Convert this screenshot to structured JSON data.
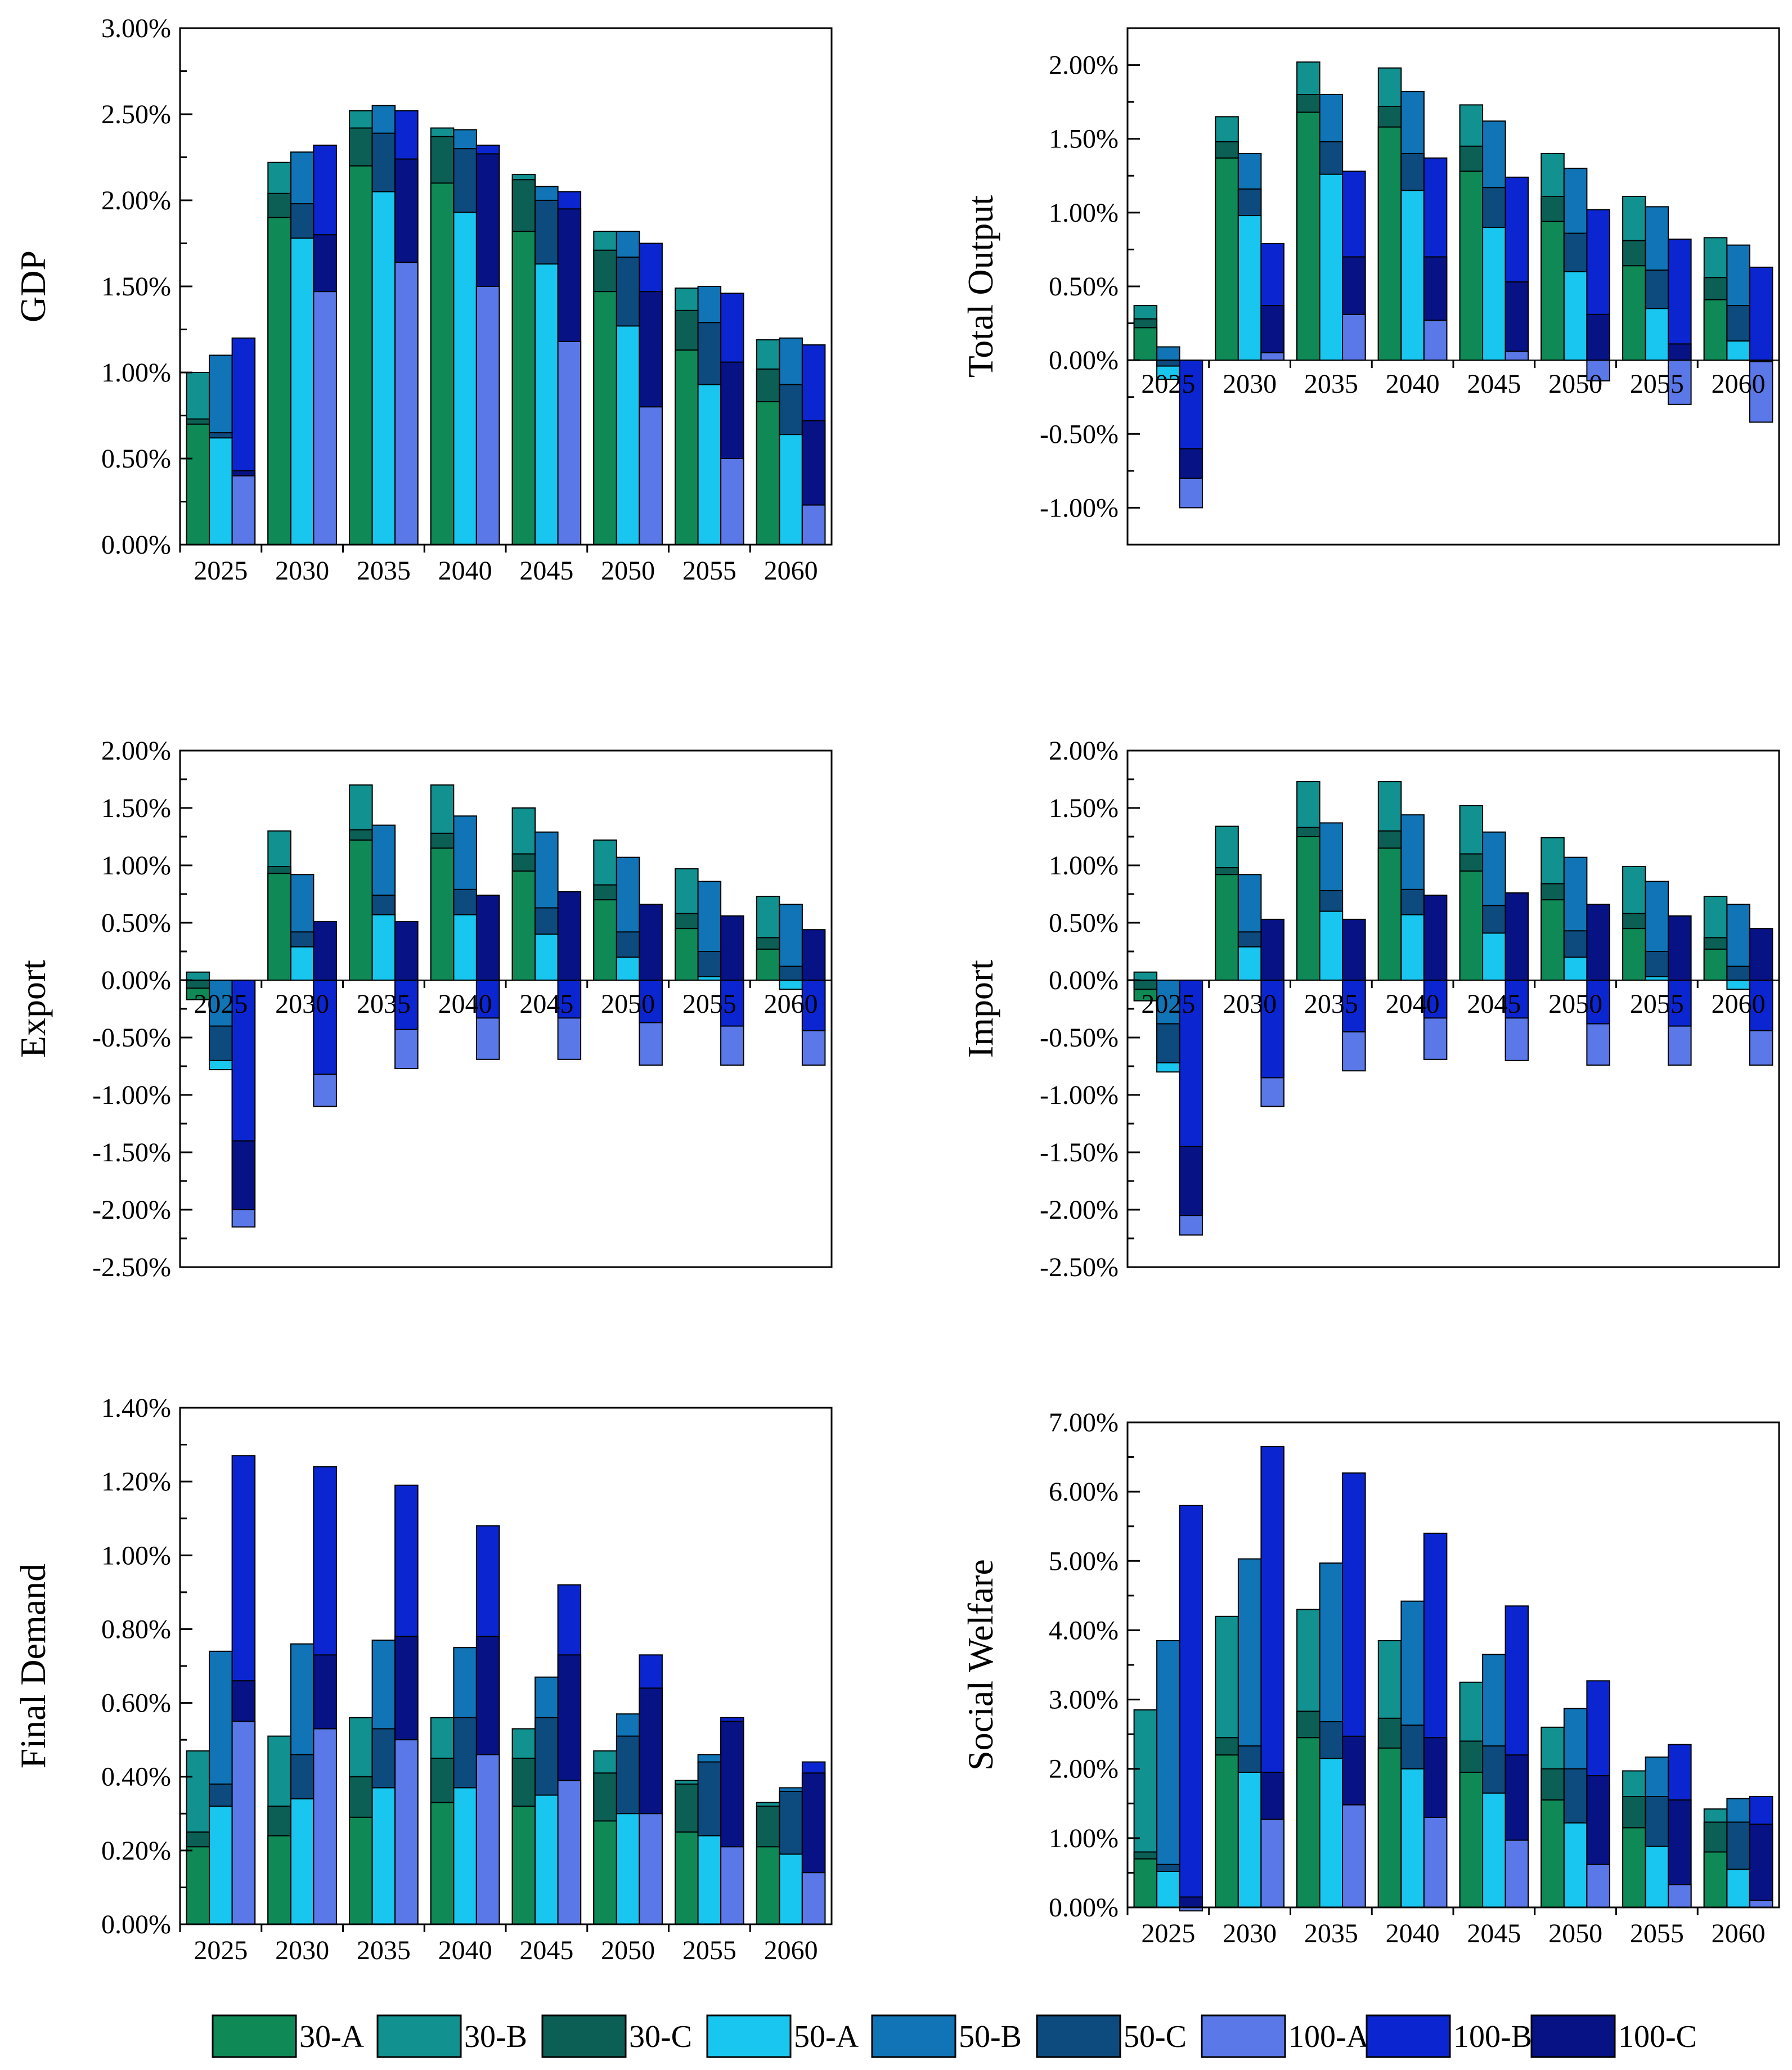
{
  "colors": {
    "30-A": "#0f8a57",
    "30-B": "#11918f",
    "30-C": "#0c5f54",
    "50-A": "#19c6ef",
    "50-B": "#1074b6",
    "50-C": "#0d4a7d",
    "100-A": "#5a78e8",
    "100-B": "#0b26d0",
    "100-C": "#071285"
  },
  "legend": {
    "items": [
      "30-A",
      "30-B",
      "30-C",
      "50-A",
      "50-B",
      "50-C",
      "100-A",
      "100-B",
      "100-C"
    ]
  },
  "chart_data": [
    {
      "type": "bar",
      "ylabel": "GDP",
      "ylim": [
        0,
        3.0
      ],
      "yticks": [
        0,
        0.5,
        1.0,
        1.5,
        2.0,
        2.5,
        3.0
      ],
      "ytick_labels": [
        "0.00%",
        "0.50%",
        "1.00%",
        "1.50%",
        "2.00%",
        "2.50%",
        "3.00%"
      ],
      "categories": [
        "2025",
        "2030",
        "2035",
        "2040",
        "2045",
        "2050",
        "2055",
        "2060"
      ],
      "series": [
        {
          "name": "30-A",
          "values": [
            0.7,
            1.9,
            2.2,
            2.1,
            1.82,
            1.47,
            1.13,
            0.83
          ]
        },
        {
          "name": "30-B",
          "values": [
            1.0,
            2.22,
            2.52,
            2.42,
            2.15,
            1.82,
            1.49,
            1.19
          ]
        },
        {
          "name": "30-C",
          "values": [
            0.73,
            2.04,
            2.42,
            2.37,
            2.12,
            1.71,
            1.36,
            1.02
          ]
        },
        {
          "name": "50-A",
          "values": [
            0.62,
            1.78,
            2.05,
            1.93,
            1.63,
            1.27,
            0.93,
            0.64
          ]
        },
        {
          "name": "50-B",
          "values": [
            1.1,
            2.28,
            2.55,
            2.41,
            2.08,
            1.82,
            1.5,
            1.2
          ]
        },
        {
          "name": "50-C",
          "values": [
            0.65,
            1.98,
            2.39,
            2.3,
            2.0,
            1.67,
            1.29,
            0.93
          ]
        },
        {
          "name": "100-A",
          "values": [
            0.4,
            1.47,
            1.64,
            1.5,
            1.18,
            0.8,
            0.5,
            0.23
          ]
        },
        {
          "name": "100-B",
          "values": [
            1.2,
            2.32,
            2.52,
            2.32,
            2.05,
            1.75,
            1.46,
            1.16
          ]
        },
        {
          "name": "100-C",
          "values": [
            0.43,
            1.8,
            2.24,
            2.27,
            1.95,
            1.47,
            1.06,
            0.72
          ]
        }
      ]
    },
    {
      "type": "bar",
      "ylabel": "Total Output",
      "ylim": [
        -1.25,
        2.25
      ],
      "yticks": [
        -1.0,
        -0.5,
        0,
        0.5,
        1.0,
        1.5,
        2.0
      ],
      "ytick_labels": [
        "-1.00%",
        "-0.50%",
        "0.00%",
        "0.50%",
        "1.00%",
        "1.50%",
        "2.00%"
      ],
      "categories": [
        "2025",
        "2030",
        "2035",
        "2040",
        "2045",
        "2050",
        "2055",
        "2060"
      ],
      "series": [
        {
          "name": "30-A",
          "values": [
            0.22,
            1.37,
            1.68,
            1.58,
            1.28,
            0.94,
            0.64,
            0.41
          ]
        },
        {
          "name": "30-B",
          "values": [
            0.37,
            1.65,
            2.02,
            1.98,
            1.73,
            1.4,
            1.11,
            0.83
          ]
        },
        {
          "name": "30-C",
          "values": [
            0.28,
            1.48,
            1.8,
            1.72,
            1.45,
            1.11,
            0.81,
            0.56
          ]
        },
        {
          "name": "50-A",
          "values": [
            -0.13,
            0.98,
            1.26,
            1.15,
            0.9,
            0.6,
            0.35,
            0.13
          ]
        },
        {
          "name": "50-B",
          "values": [
            0.09,
            1.4,
            1.8,
            1.82,
            1.62,
            1.3,
            1.04,
            0.78
          ]
        },
        {
          "name": "50-C",
          "values": [
            -0.04,
            1.16,
            1.48,
            1.4,
            1.17,
            0.86,
            0.61,
            0.37
          ]
        },
        {
          "name": "100-A",
          "values": [
            -1.0,
            0.05,
            0.31,
            0.27,
            0.06,
            -0.14,
            -0.3,
            -0.42
          ]
        },
        {
          "name": "100-B",
          "values": [
            -0.6,
            0.79,
            1.28,
            1.37,
            1.24,
            1.02,
            0.82,
            0.63
          ]
        },
        {
          "name": "100-C",
          "values": [
            -0.8,
            0.37,
            0.7,
            0.7,
            0.53,
            0.31,
            0.11,
            -0.01
          ]
        }
      ]
    },
    {
      "type": "bar",
      "ylabel": "Export",
      "ylim": [
        -2.5,
        2.0
      ],
      "yticks": [
        -2.5,
        -2.0,
        -1.5,
        -1.0,
        -0.5,
        0,
        0.5,
        1.0,
        1.5,
        2.0
      ],
      "ytick_labels": [
        "-2.50%",
        "-2.00%",
        "-1.50%",
        "-1.00%",
        "-0.50%",
        "0.00%",
        "0.50%",
        "1.00%",
        "1.50%",
        "2.00%"
      ],
      "categories": [
        "2025",
        "2030",
        "2035",
        "2040",
        "2045",
        "2050",
        "2055",
        "2060"
      ],
      "series": [
        {
          "name": "30-A",
          "values": [
            -0.17,
            0.93,
            1.22,
            1.15,
            0.95,
            0.7,
            0.45,
            0.27
          ]
        },
        {
          "name": "30-B",
          "values": [
            0.07,
            1.3,
            1.7,
            1.7,
            1.5,
            1.22,
            0.97,
            0.73
          ]
        },
        {
          "name": "30-C",
          "values": [
            -0.07,
            0.99,
            1.31,
            1.28,
            1.1,
            0.83,
            0.58,
            0.37
          ]
        },
        {
          "name": "50-A",
          "values": [
            -0.78,
            0.29,
            0.57,
            0.57,
            0.4,
            0.2,
            0.03,
            -0.08
          ]
        },
        {
          "name": "50-B",
          "values": [
            -0.4,
            0.92,
            1.35,
            1.43,
            1.29,
            1.07,
            0.86,
            0.66
          ]
        },
        {
          "name": "50-C",
          "values": [
            -0.7,
            0.42,
            0.74,
            0.79,
            0.63,
            0.42,
            0.25,
            0.12
          ]
        },
        {
          "name": "100-A",
          "values": [
            -2.15,
            -1.1,
            -0.77,
            -0.69,
            -0.69,
            -0.74,
            -0.74,
            -0.74
          ]
        },
        {
          "name": "100-B",
          "values": [
            -1.4,
            -0.82,
            -0.43,
            -0.33,
            -0.33,
            -0.37,
            -0.4,
            -0.44
          ]
        },
        {
          "name": "100-C",
          "values": [
            -2.0,
            0.51,
            0.51,
            0.74,
            0.77,
            0.66,
            0.56,
            0.44
          ]
        }
      ]
    },
    {
      "type": "bar",
      "ylabel": "Import",
      "ylim": [
        -2.5,
        2.0
      ],
      "yticks": [
        -2.5,
        -2.0,
        -1.5,
        -1.0,
        -0.5,
        0,
        0.5,
        1.0,
        1.5,
        2.0
      ],
      "ytick_labels": [
        "-2.50%",
        "-2.00%",
        "-1.50%",
        "-1.00%",
        "-0.50%",
        "0.00%",
        "0.50%",
        "1.00%",
        "1.50%",
        "2.00%"
      ],
      "categories": [
        "2025",
        "2030",
        "2035",
        "2040",
        "2045",
        "2050",
        "2055",
        "2060"
      ],
      "series": [
        {
          "name": "30-A",
          "values": [
            -0.18,
            0.92,
            1.25,
            1.15,
            0.95,
            0.7,
            0.45,
            0.27
          ]
        },
        {
          "name": "30-B",
          "values": [
            0.07,
            1.34,
            1.73,
            1.73,
            1.52,
            1.24,
            0.99,
            0.73
          ]
        },
        {
          "name": "30-C",
          "values": [
            -0.08,
            0.98,
            1.33,
            1.3,
            1.1,
            0.84,
            0.58,
            0.37
          ]
        },
        {
          "name": "50-A",
          "values": [
            -0.8,
            0.29,
            0.6,
            0.57,
            0.41,
            0.2,
            0.03,
            -0.08
          ]
        },
        {
          "name": "50-B",
          "values": [
            -0.38,
            0.92,
            1.37,
            1.44,
            1.29,
            1.07,
            0.86,
            0.66
          ]
        },
        {
          "name": "50-C",
          "values": [
            -0.72,
            0.42,
            0.78,
            0.79,
            0.65,
            0.43,
            0.25,
            0.12
          ]
        },
        {
          "name": "100-A",
          "values": [
            -2.22,
            -1.1,
            -0.79,
            -0.69,
            -0.7,
            -0.74,
            -0.74,
            -0.74
          ]
        },
        {
          "name": "100-B",
          "values": [
            -1.45,
            -0.85,
            -0.45,
            -0.33,
            -0.33,
            -0.38,
            -0.4,
            -0.44
          ]
        },
        {
          "name": "100-C",
          "values": [
            -2.05,
            0.53,
            0.53,
            0.74,
            0.76,
            0.66,
            0.56,
            0.45
          ]
        }
      ]
    },
    {
      "type": "bar",
      "ylabel": "Final Demand",
      "ylim": [
        0,
        1.4
      ],
      "yticks": [
        0,
        0.2,
        0.4,
        0.6,
        0.8,
        1.0,
        1.2,
        1.4
      ],
      "ytick_labels": [
        "0.00%",
        "0.20%",
        "0.40%",
        "0.60%",
        "0.80%",
        "1.00%",
        "1.20%",
        "1.40%"
      ],
      "categories": [
        "2025",
        "2030",
        "2035",
        "2040",
        "2045",
        "2050",
        "2055",
        "2060"
      ],
      "series": [
        {
          "name": "30-A",
          "values": [
            0.21,
            0.24,
            0.29,
            0.33,
            0.32,
            0.28,
            0.25,
            0.21
          ]
        },
        {
          "name": "30-B",
          "values": [
            0.47,
            0.51,
            0.56,
            0.56,
            0.53,
            0.47,
            0.39,
            0.33
          ]
        },
        {
          "name": "30-C",
          "values": [
            0.25,
            0.32,
            0.4,
            0.45,
            0.45,
            0.41,
            0.38,
            0.32
          ]
        },
        {
          "name": "50-A",
          "values": [
            0.32,
            0.34,
            0.37,
            0.37,
            0.35,
            0.3,
            0.24,
            0.19
          ]
        },
        {
          "name": "50-B",
          "values": [
            0.74,
            0.76,
            0.77,
            0.75,
            0.67,
            0.57,
            0.46,
            0.37
          ]
        },
        {
          "name": "50-C",
          "values": [
            0.38,
            0.46,
            0.53,
            0.56,
            0.56,
            0.51,
            0.44,
            0.36
          ]
        },
        {
          "name": "100-A",
          "values": [
            0.55,
            0.53,
            0.5,
            0.46,
            0.39,
            0.3,
            0.21,
            0.14
          ]
        },
        {
          "name": "100-B",
          "values": [
            1.27,
            1.24,
            1.19,
            1.08,
            0.92,
            0.73,
            0.56,
            0.44
          ]
        },
        {
          "name": "100-C",
          "values": [
            0.66,
            0.73,
            0.78,
            0.78,
            0.73,
            0.64,
            0.55,
            0.41
          ]
        }
      ]
    },
    {
      "type": "bar",
      "ylabel": "Social Welfare",
      "ylim": [
        0,
        7.0
      ],
      "yticks": [
        0,
        1.0,
        2.0,
        3.0,
        4.0,
        5.0,
        6.0,
        7.0
      ],
      "ytick_labels": [
        "0.00%",
        "1.00%",
        "2.00%",
        "3.00%",
        "4.00%",
        "5.00%",
        "6.00%",
        "7.00%"
      ],
      "categories": [
        "2025",
        "2030",
        "2035",
        "2040",
        "2045",
        "2050",
        "2055",
        "2060"
      ],
      "series": [
        {
          "name": "30-A",
          "values": [
            0.7,
            2.2,
            2.45,
            2.3,
            1.95,
            1.55,
            1.15,
            0.8
          ]
        },
        {
          "name": "30-B",
          "values": [
            2.85,
            4.2,
            4.3,
            3.85,
            3.25,
            2.6,
            1.97,
            1.42
          ]
        },
        {
          "name": "30-C",
          "values": [
            0.8,
            2.45,
            2.83,
            2.73,
            2.4,
            2.0,
            1.6,
            1.23
          ]
        },
        {
          "name": "50-A",
          "values": [
            0.52,
            1.95,
            2.15,
            2.0,
            1.65,
            1.22,
            0.88,
            0.55
          ]
        },
        {
          "name": "50-B",
          "values": [
            3.85,
            5.03,
            4.97,
            4.42,
            3.65,
            2.87,
            2.17,
            1.57
          ]
        },
        {
          "name": "50-C",
          "values": [
            0.62,
            2.33,
            2.68,
            2.63,
            2.33,
            2.0,
            1.6,
            1.23
          ]
        },
        {
          "name": "100-A",
          "values": [
            -0.05,
            1.27,
            1.48,
            1.3,
            0.97,
            0.62,
            0.33,
            0.1
          ]
        },
        {
          "name": "100-B",
          "values": [
            5.8,
            6.65,
            6.27,
            5.4,
            4.35,
            3.27,
            2.35,
            1.6
          ]
        },
        {
          "name": "100-C",
          "values": [
            0.15,
            1.95,
            2.47,
            2.45,
            2.2,
            1.9,
            1.55,
            1.2
          ]
        }
      ]
    }
  ]
}
